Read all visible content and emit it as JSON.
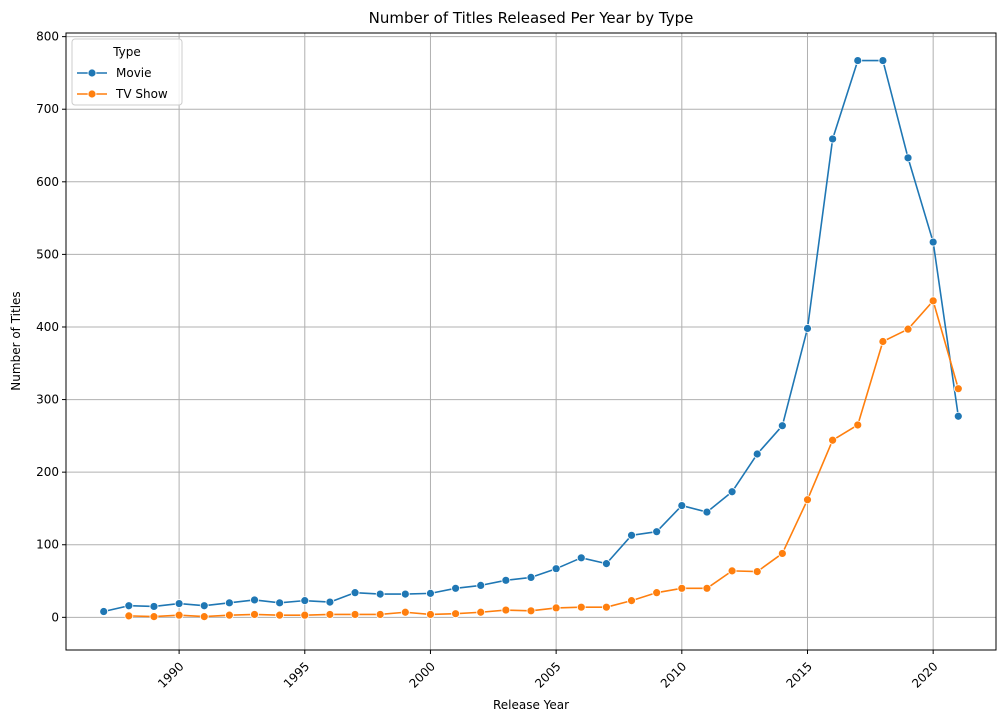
{
  "chart_data": {
    "type": "line",
    "title": "Number of Titles Released Per Year by Type",
    "xlabel": "Release Year",
    "ylabel": "Number of Titles",
    "xlim": [
      1985.5,
      2022.5
    ],
    "ylim": [
      -45,
      805
    ],
    "xticks": [
      1990,
      1995,
      2000,
      2005,
      2010,
      2015,
      2020
    ],
    "yticks": [
      0,
      100,
      200,
      300,
      400,
      500,
      600,
      700,
      800
    ],
    "grid": true,
    "legend": {
      "title": "Type",
      "position": "top-left"
    },
    "series": [
      {
        "name": "Movie",
        "color": "#1f77b4",
        "x": [
          1987,
          1988,
          1989,
          1990,
          1991,
          1992,
          1993,
          1994,
          1995,
          1996,
          1997,
          1998,
          1999,
          2000,
          2001,
          2002,
          2003,
          2004,
          2005,
          2006,
          2007,
          2008,
          2009,
          2010,
          2011,
          2012,
          2013,
          2014,
          2015,
          2016,
          2017,
          2018,
          2019,
          2020,
          2021
        ],
        "y": [
          8,
          16,
          15,
          19,
          16,
          20,
          24,
          20,
          23,
          21,
          34,
          32,
          32,
          33,
          40,
          44,
          51,
          55,
          67,
          82,
          74,
          113,
          118,
          154,
          145,
          173,
          225,
          264,
          398,
          659,
          767,
          767,
          633,
          517,
          277
        ]
      },
      {
        "name": "TV Show",
        "color": "#ff7f0e",
        "x": [
          1988,
          1989,
          1990,
          1991,
          1992,
          1993,
          1994,
          1995,
          1996,
          1997,
          1998,
          1999,
          2000,
          2001,
          2002,
          2003,
          2004,
          2005,
          2006,
          2007,
          2008,
          2009,
          2010,
          2011,
          2012,
          2013,
          2014,
          2015,
          2016,
          2017,
          2018,
          2019,
          2020,
          2021
        ],
        "y": [
          2,
          1,
          3,
          1,
          3,
          4,
          3,
          3,
          4,
          4,
          4,
          7,
          4,
          5,
          7,
          10,
          9,
          13,
          14,
          14,
          23,
          34,
          40,
          40,
          64,
          63,
          88,
          162,
          244,
          265,
          380,
          397,
          436,
          315
        ]
      }
    ]
  }
}
